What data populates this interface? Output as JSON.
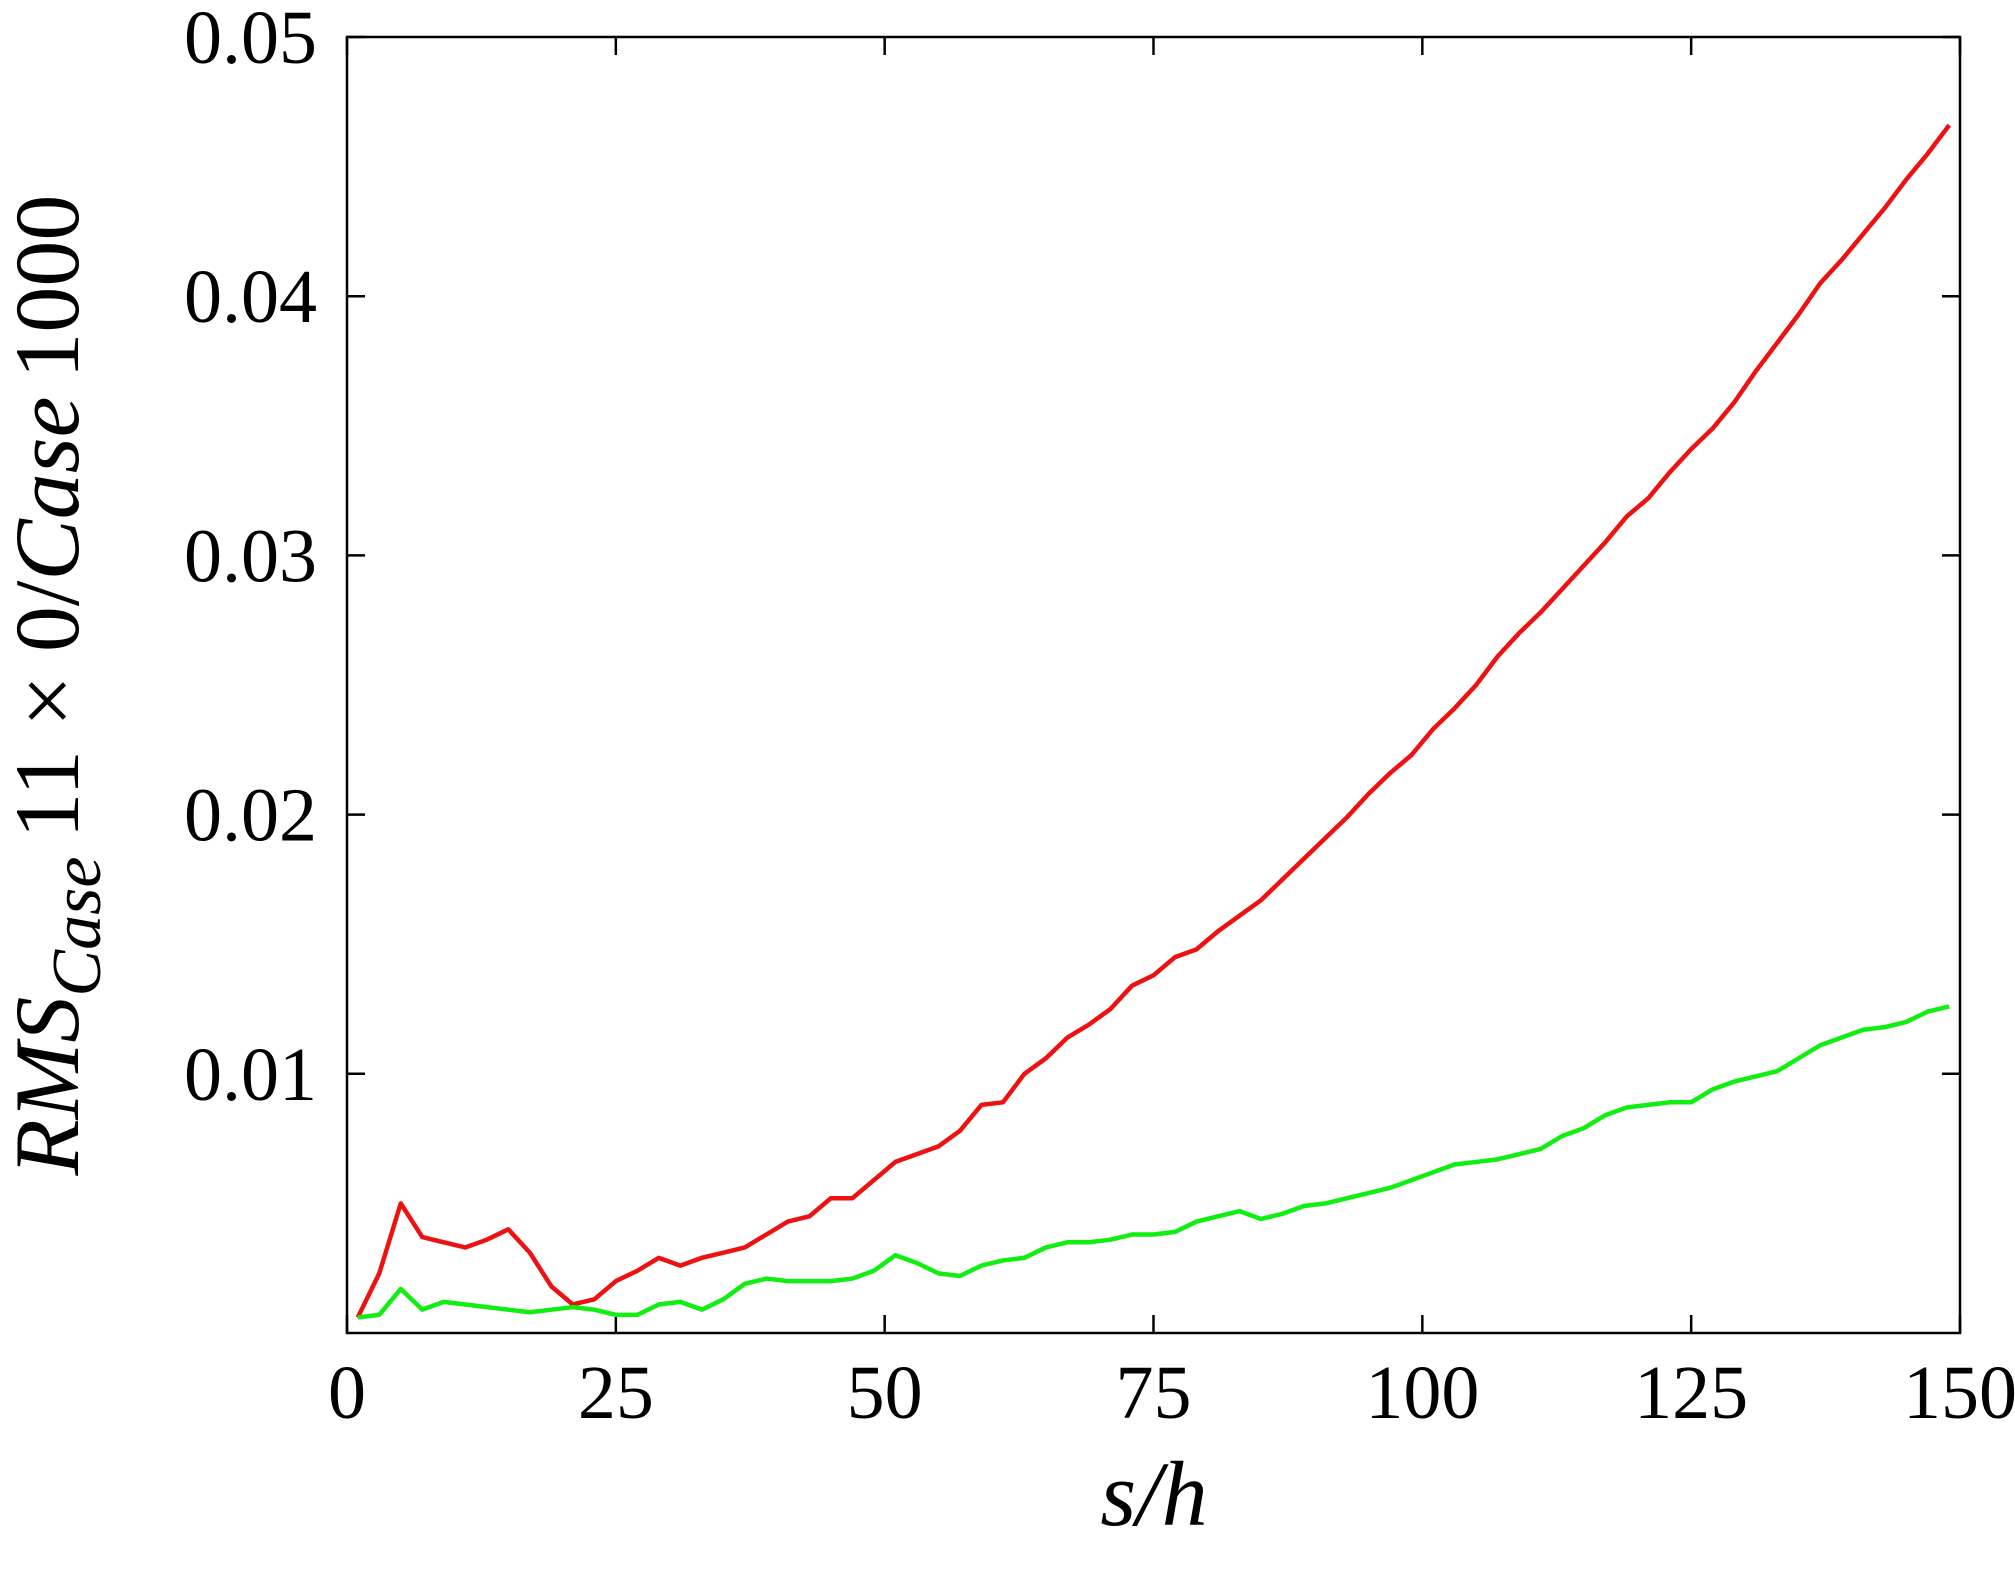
{
  "chart_data": {
    "type": "line",
    "xlabel": "s/h",
    "ylabel": [
      "RMS",
      "Case",
      "11 × 0/",
      "Case",
      "1000"
    ],
    "x": [
      1,
      3,
      5,
      7,
      9,
      11,
      13,
      15,
      17,
      19,
      21,
      23,
      25,
      27,
      29,
      31,
      33,
      35,
      37,
      39,
      41,
      43,
      45,
      47,
      49,
      51,
      53,
      55,
      57,
      59,
      61,
      63,
      65,
      67,
      69,
      71,
      73,
      75,
      77,
      79,
      81,
      83,
      85,
      87,
      89,
      91,
      93,
      95,
      97,
      99,
      101,
      103,
      105,
      107,
      109,
      111,
      113,
      115,
      117,
      119,
      121,
      123,
      125,
      127,
      129,
      131,
      133,
      135,
      137,
      139,
      141,
      143,
      145,
      147,
      149
    ],
    "series": [
      {
        "color": "#ee1111",
        "values": [
          0.0006,
          0.0023,
          0.005,
          0.0037,
          0.0035,
          0.0033,
          0.0036,
          0.004,
          0.0031,
          0.0018,
          0.0011,
          0.0013,
          0.002,
          0.0024,
          0.0029,
          0.0026,
          0.0029,
          0.0031,
          0.0033,
          0.0038,
          0.0043,
          0.0045,
          0.0052,
          0.0052,
          0.0059,
          0.0066,
          0.0069,
          0.0072,
          0.0078,
          0.0088,
          0.0089,
          0.01,
          0.0106,
          0.0114,
          0.0119,
          0.0125,
          0.0134,
          0.0138,
          0.0145,
          0.0148,
          0.0155,
          0.0161,
          0.0167,
          0.0175,
          0.0183,
          0.0191,
          0.0199,
          0.0208,
          0.0216,
          0.0223,
          0.0233,
          0.0241,
          0.025,
          0.0261,
          0.027,
          0.0278,
          0.0287,
          0.0296,
          0.0305,
          0.0315,
          0.0322,
          0.0332,
          0.0341,
          0.0349,
          0.0359,
          0.0371,
          0.0382,
          0.0393,
          0.0405,
          0.0414,
          0.0424,
          0.0434,
          0.0445,
          0.0455,
          0.0466
        ]
      },
      {
        "color": "#11ee11",
        "values": [
          0.0006,
          0.0007,
          0.0017,
          0.0009,
          0.0012,
          0.0011,
          0.001,
          0.0009,
          0.0008,
          0.0009,
          0.001,
          0.0009,
          0.0007,
          0.0007,
          0.0011,
          0.0012,
          0.0009,
          0.0013,
          0.0019,
          0.0021,
          0.002,
          0.002,
          0.002,
          0.0021,
          0.0024,
          0.003,
          0.0027,
          0.0023,
          0.0022,
          0.0026,
          0.0028,
          0.0029,
          0.0033,
          0.0035,
          0.0035,
          0.0036,
          0.0038,
          0.0038,
          0.0039,
          0.0043,
          0.0045,
          0.0047,
          0.0044,
          0.0046,
          0.0049,
          0.005,
          0.0052,
          0.0054,
          0.0056,
          0.0059,
          0.0062,
          0.0065,
          0.0066,
          0.0067,
          0.0069,
          0.0071,
          0.0076,
          0.0079,
          0.0084,
          0.0087,
          0.0088,
          0.0089,
          0.0089,
          0.0094,
          0.0097,
          0.0099,
          0.0101,
          0.0106,
          0.0111,
          0.0114,
          0.0117,
          0.0118,
          0.012,
          0.0124,
          0.0126
        ]
      }
    ],
    "xlim": [
      0,
      150
    ],
    "xticks": [
      0,
      25,
      50,
      75,
      100,
      125,
      150
    ],
    "ylim": [
      0,
      0.05
    ],
    "yticks": [
      0.01,
      0.02,
      0.03,
      0.04,
      0.05
    ]
  }
}
